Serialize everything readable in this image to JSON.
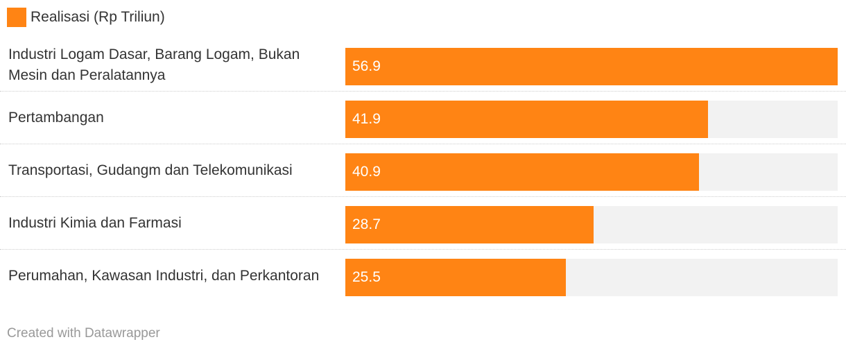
{
  "legend": {
    "label": "Realisasi (Rp Triliun)",
    "color": "#ff8414"
  },
  "footer": {
    "text": "Created with Datawrapper"
  },
  "colors": {
    "bar": "#ff8414",
    "track": "#f2f2f2"
  },
  "chart_data": {
    "type": "bar",
    "orientation": "horizontal",
    "title": "",
    "xlabel": "",
    "ylabel": "",
    "xlim": [
      0,
      56.9
    ],
    "grid": false,
    "legend_position": "top-left",
    "categories": [
      "Industri Logam Dasar, Barang Logam, Bukan Mesin dan Peralatannya",
      "Pertambangan",
      "Transportasi, Gudangm dan Telekomunikasi",
      "Industri Kimia dan Farmasi",
      "Perumahan, Kawasan Industri, dan Perkantoran"
    ],
    "series": [
      {
        "name": "Realisasi (Rp Triliun)",
        "values": [
          56.9,
          41.9,
          40.9,
          28.7,
          25.5
        ],
        "labels": [
          "56.9",
          "41.9",
          "40.9",
          "28.7",
          "25.5"
        ]
      }
    ]
  }
}
